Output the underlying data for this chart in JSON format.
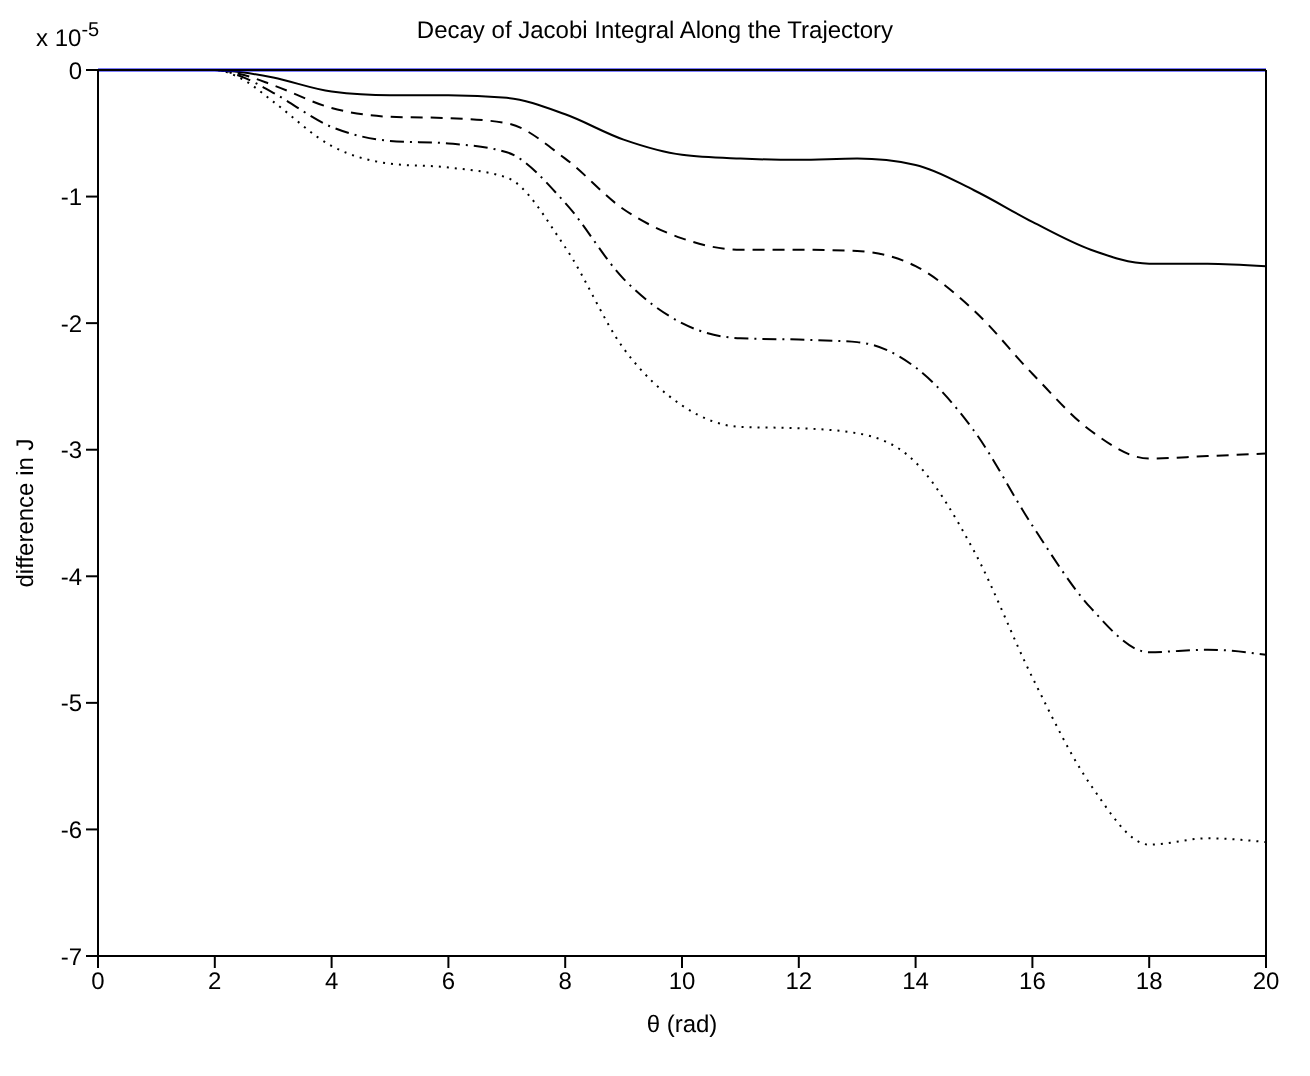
{
  "chart_data": {
    "type": "line",
    "title": "Decay of Jacobi Integral Along the Trajectory",
    "xlabel": "θ (rad)",
    "ylabel": "difference in J",
    "annotations": [
      "x 10$^{-5}$"
    ],
    "x": [
      0,
      1,
      2,
      2.5,
      3,
      4,
      5,
      6,
      7,
      8,
      9,
      10,
      11,
      12,
      13,
      14,
      15,
      16,
      17,
      18,
      19,
      20
    ],
    "series": [
      {
        "color": "#000000",
        "line_style": "solid",
        "values": [
          0,
          0,
          0,
          -0.02,
          -0.06,
          -0.17,
          -0.2,
          -0.2,
          -0.22,
          -0.35,
          -0.55,
          -0.67,
          -0.7,
          -0.71,
          -0.7,
          -0.75,
          -0.95,
          -1.2,
          -1.42,
          -1.53,
          -1.53,
          -1.55
        ]
      },
      {
        "color": "#000000",
        "line_style": "dashed",
        "values": [
          0,
          0,
          0,
          -0.04,
          -0.12,
          -0.3,
          -0.37,
          -0.38,
          -0.42,
          -0.7,
          -1.1,
          -1.33,
          -1.42,
          -1.42,
          -1.43,
          -1.55,
          -1.9,
          -2.4,
          -2.85,
          -3.07,
          -3.05,
          -3.03
        ]
      },
      {
        "color": "#000000",
        "line_style": "dashdot",
        "values": [
          0,
          0,
          0,
          -0.06,
          -0.18,
          -0.45,
          -0.56,
          -0.58,
          -0.65,
          -1.05,
          -1.65,
          -2,
          -2.12,
          -2.13,
          -2.15,
          -2.35,
          -2.85,
          -3.6,
          -4.25,
          -4.6,
          -4.58,
          -4.62
        ]
      },
      {
        "color": "#000000",
        "line_style": "dotted",
        "values": [
          0,
          0,
          0,
          -0.08,
          -0.25,
          -0.6,
          -0.74,
          -0.77,
          -0.85,
          -1.4,
          -2.2,
          -2.65,
          -2.82,
          -2.83,
          -2.87,
          -3.1,
          -3.8,
          -4.8,
          -5.65,
          -6.12,
          -6.07,
          -6.1
        ]
      }
    ],
    "xlim": [
      0,
      20
    ],
    "xticks": [
      0,
      2,
      4,
      6,
      8,
      10,
      12,
      14,
      16,
      18,
      20
    ],
    "ylim": [
      -7,
      0
    ],
    "yticks": [
      -7,
      -6,
      -5,
      -4,
      -3,
      -2,
      -1,
      0
    ],
    "ref_lines": [
      {
        "axis": "y",
        "value": 0,
        "color": "#0000ff"
      }
    ],
    "grid": false,
    "legend": false,
    "marker": "none"
  }
}
